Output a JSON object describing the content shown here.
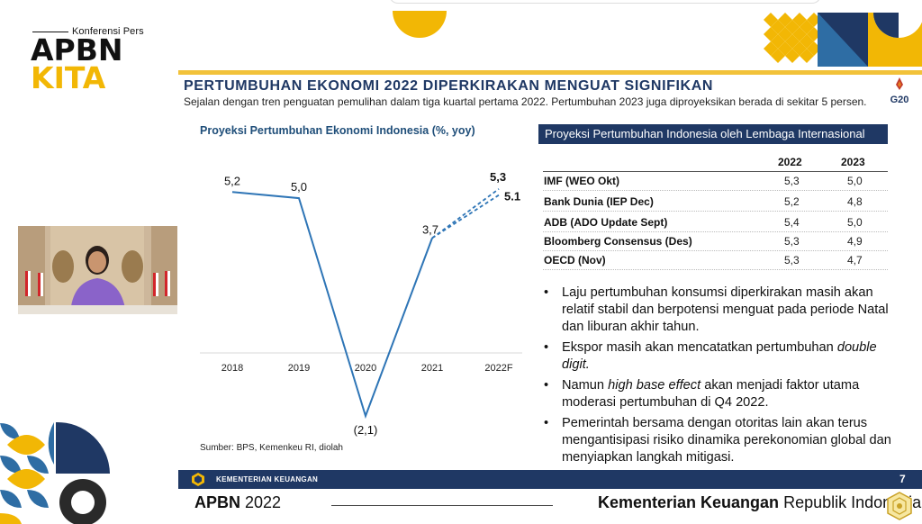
{
  "brand": {
    "logo_sub": "Konferensi Pers",
    "logo_line1": "APBN",
    "logo_line2": "KITA",
    "accent_color": "#f2b705",
    "navy_color": "#1f3864"
  },
  "slide": {
    "title": "PERTUMBUHAN EKONOMI 2022 DIPERKIRAKAN MENGUAT SIGNIFIKAN",
    "subtitle": "Sejalan dengan tren penguatan pemulihan dalam tiga kuartal pertama 2022. Pertumbuhan 2023 juga diproyeksikan berada di sekitar 5 persen.",
    "g20_label": "G20",
    "page_number": "7",
    "footer_org": "KEMENTERIAN KEUANGAN"
  },
  "chart_data": {
    "type": "line",
    "title": "Proyeksi Pertumbuhan Ekonomi Indonesia (%, yoy)",
    "categories": [
      "2018",
      "2019",
      "2020",
      "2021",
      "2022F"
    ],
    "series": [
      {
        "values": [
          5.2,
          5.0,
          -2.1,
          3.7,
          null
        ],
        "style": "solid"
      },
      {
        "values": [
          null,
          null,
          null,
          3.7,
          5.3
        ],
        "style": "dashed"
      },
      {
        "values": [
          null,
          null,
          null,
          3.7,
          5.1
        ],
        "style": "dashed"
      }
    ],
    "data_labels": [
      "5,2",
      "5,0",
      "(2,1)",
      "3,7",
      "5,3",
      "5.1"
    ],
    "ylim": [
      -2.1,
      6.0
    ],
    "line_color": "#2e75b6",
    "grid": false,
    "source": "Sumber: BPS, Kemenkeu RI, diolah"
  },
  "table": {
    "header": "Proyeksi Pertumbuhan Indonesia oleh Lembaga Internasional",
    "columns": [
      "2022",
      "2023"
    ],
    "rows": [
      {
        "label": "IMF (WEO Okt)",
        "v2022": "5,3",
        "v2023": "5,0"
      },
      {
        "label": "Bank Dunia (IEP Dec)",
        "v2022": "5,2",
        "v2023": "4,8"
      },
      {
        "label": "ADB (ADO Update Sept)",
        "v2022": "5,4",
        "v2023": "5,0"
      },
      {
        "label": "Bloomberg Consensus (Des)",
        "v2022": "5,3",
        "v2023": "4,9"
      },
      {
        "label": "OECD (Nov)",
        "v2022": "5,3",
        "v2023": "4,7"
      }
    ]
  },
  "bullets": {
    "b1": "Laju pertumbuhan konsumsi diperkirakan masih akan relatif stabil dan berpotensi menguat pada periode Natal dan liburan akhir tahun.",
    "b2_pre": "Ekspor masih akan mencatatkan pertumbuhan ",
    "b2_em": "double digit.",
    "b3_pre": "Namun ",
    "b3_em": "high base effect",
    "b3_post": " akan menjadi faktor utama moderasi pertumbuhan di Q4 2022.",
    "b4": "Pemerintah bersama dengan otoritas lain akan terus mengantisipasi risiko dinamika perekonomian global dan menyiapkan langkah mitigasi."
  },
  "footer": {
    "apbn_bold": "APBN",
    "apbn_year": " 2022",
    "org_bold": "Kementerian Keuangan",
    "org_rest": " Republik Indonesia"
  }
}
